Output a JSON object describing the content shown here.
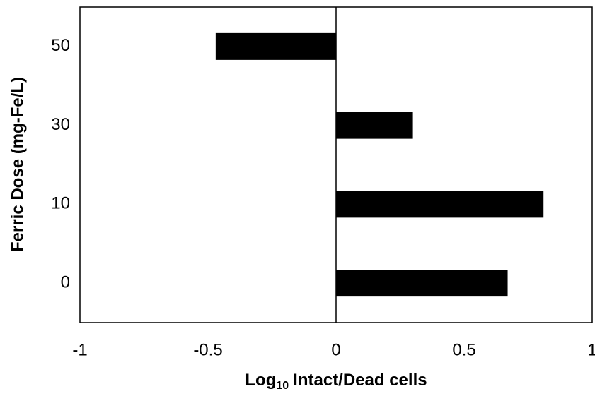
{
  "chart_data": {
    "type": "hbar",
    "y_label": "Ferric Dose (mg-Fe/L)",
    "x_label": {
      "base": "Log",
      "subscript": "10",
      "rest": "Intact/Dead cells"
    },
    "categories": [
      "0",
      "10",
      "30",
      "50"
    ],
    "values": [
      0.67,
      0.81,
      0.3,
      -0.47
    ],
    "color": "#000000",
    "xlim": [
      -1,
      1
    ],
    "xticks": [
      -1,
      -0.5,
      0,
      0.5,
      1
    ],
    "grid": false
  }
}
